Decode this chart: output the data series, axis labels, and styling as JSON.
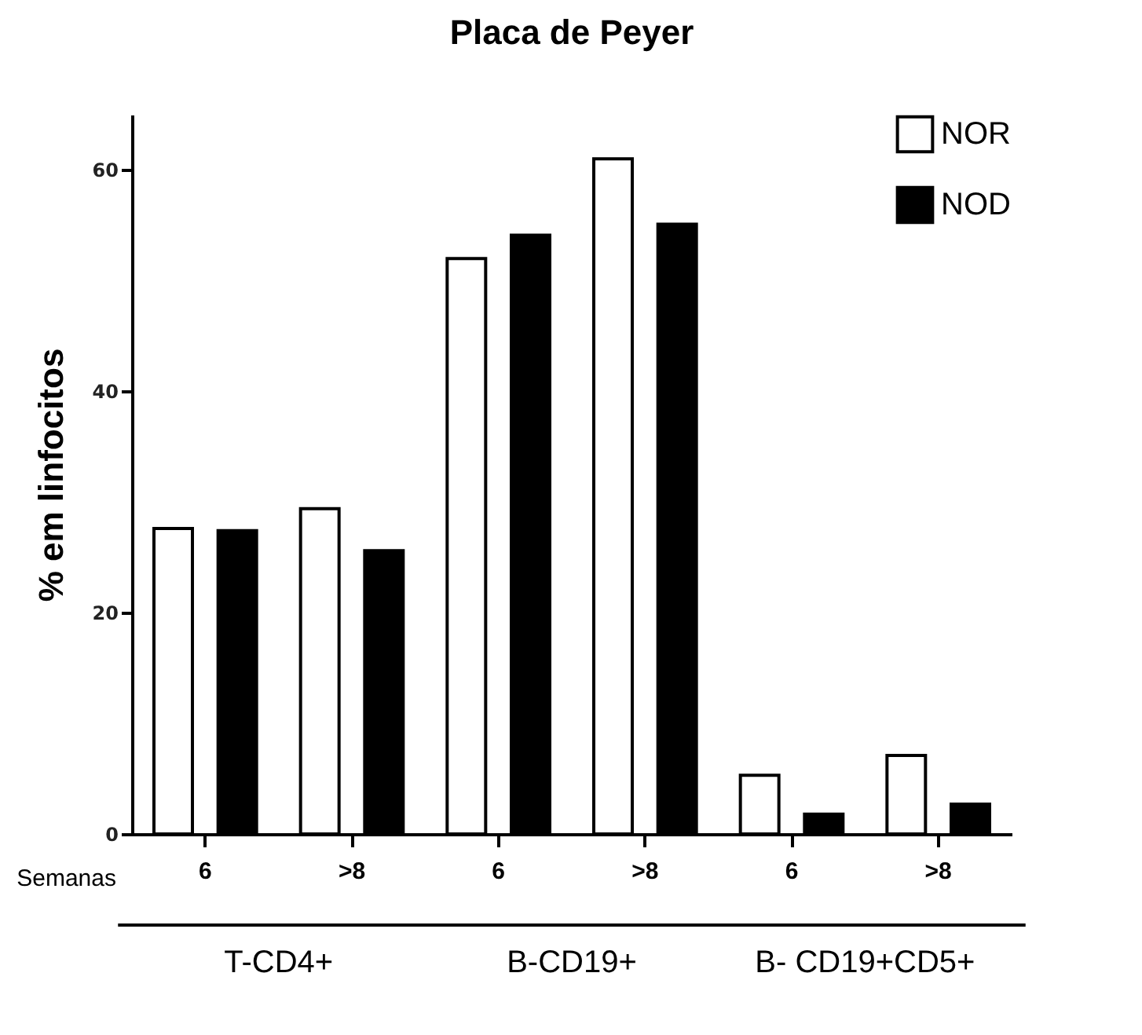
{
  "chart_data": {
    "type": "bar",
    "title": "Placa de Peyer",
    "ylabel": "% em linfocitos",
    "categories": [
      "6",
      ">8",
      "6",
      ">8",
      "6",
      ">8"
    ],
    "series": [
      {
        "name": "NOR",
        "color": "#ffffff",
        "values": [
          27.6,
          29.4,
          52.0,
          61.0,
          5.3,
          7.1
        ]
      },
      {
        "name": "NOD",
        "color": "#000000",
        "values": [
          27.4,
          25.6,
          54.1,
          55.1,
          1.8,
          2.7
        ]
      }
    ],
    "ylim": [
      0,
      65
    ],
    "yticks": [
      0,
      20,
      40,
      60
    ],
    "grid": false,
    "legend": "top right",
    "annotations": [
      "Semanas",
      "T-CD4+",
      "B-CD19+",
      "B- CD19+CD5+"
    ]
  }
}
